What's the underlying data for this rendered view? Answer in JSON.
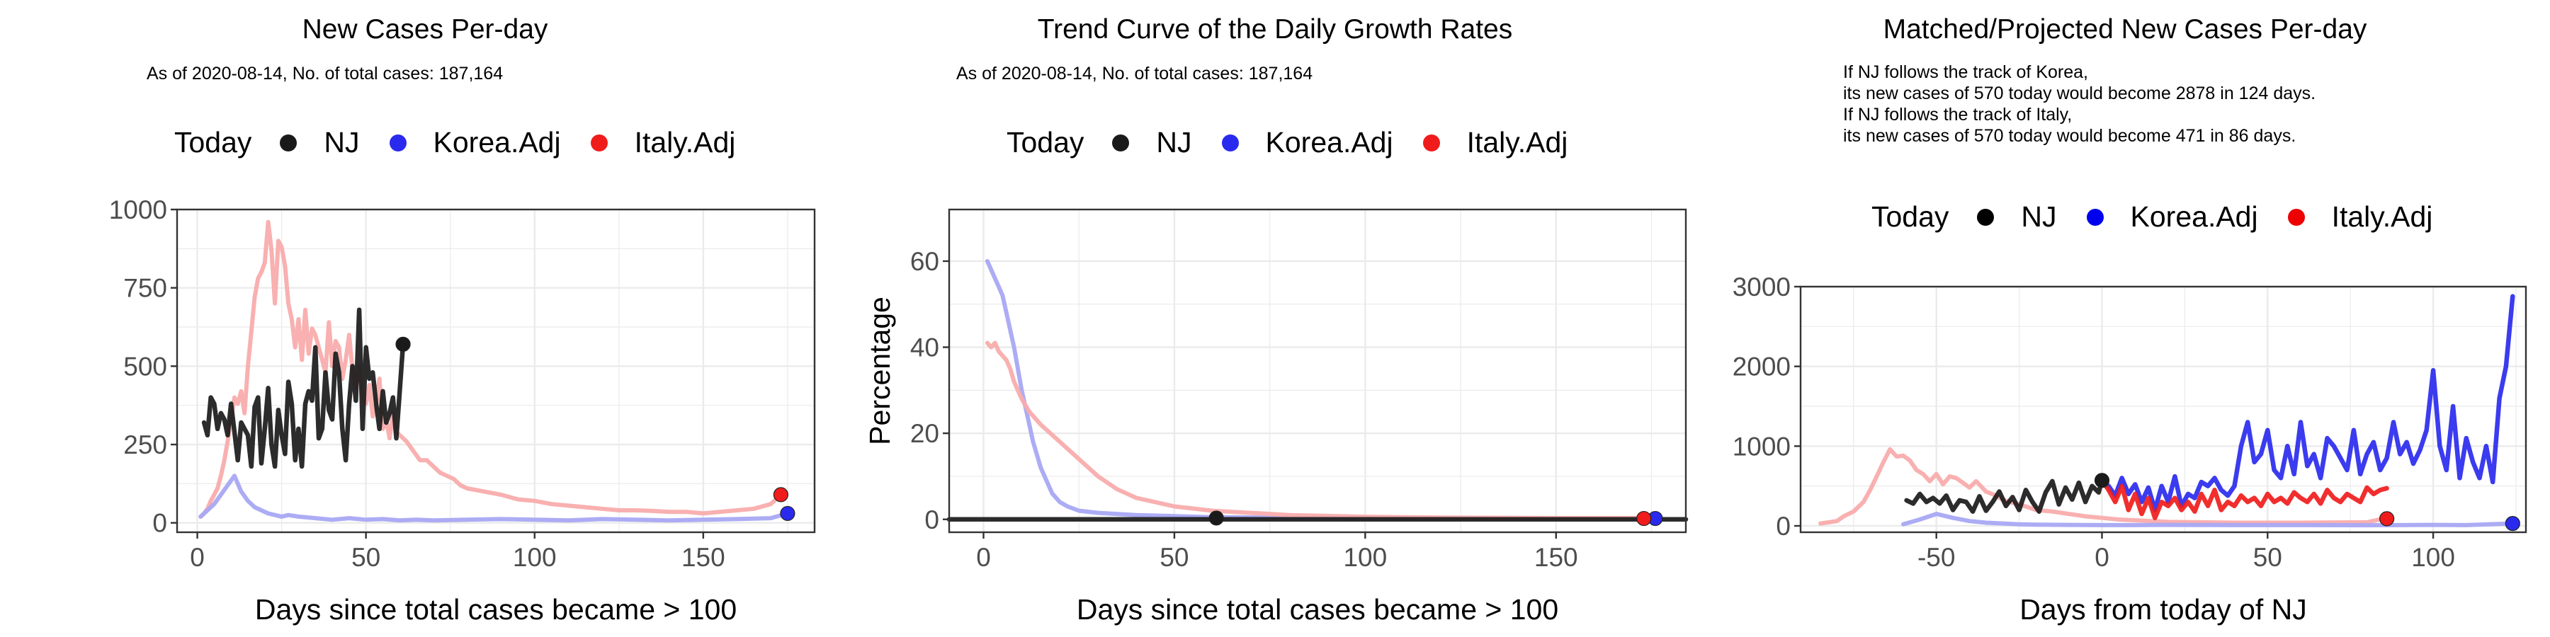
{
  "panels": [
    {
      "title": "New Cases Per-day",
      "subtitle": "As of 2020-08-14, No. of total cases: 187,164",
      "legend": {
        "title": "Today",
        "items": [
          "NJ",
          "Korea.Adj",
          "Italy.Adj"
        ]
      }
    },
    {
      "title": "Trend Curve of the Daily Growth Rates",
      "subtitle": "As of 2020-08-14, No. of total cases: 187,164",
      "legend": {
        "title": "Today",
        "items": [
          "NJ",
          "Korea.Adj",
          "Italy.Adj"
        ]
      }
    },
    {
      "title": "Matched/Projected New Cases Per-day",
      "notes": [
        "If NJ follows the track of Korea,",
        "its new cases of 570 today would become 2878 in 124 days.",
        "If NJ follows the track of Italy,",
        "its new cases of 570 today would become 471 in 86 days."
      ],
      "legend": {
        "title": "Today",
        "items": [
          "NJ",
          "Korea.Adj",
          "Italy.Adj"
        ]
      }
    }
  ],
  "colors": {
    "NJ": "#1a1a1a",
    "Korea": "#2a2aee",
    "Italy": "#f01c1c",
    "Korea_faint": "#a8a8f4",
    "Italy_faint": "#f9acac",
    "grid": "#ebebeb",
    "axis": "#333333"
  },
  "chart_data": [
    {
      "type": "line",
      "xlabel": "Days since total cases became > 100",
      "ylabel": "",
      "xlim": [
        -6,
        183
      ],
      "ylim": [
        -30,
        1000
      ],
      "xticks": [
        0,
        50,
        100,
        150
      ],
      "yticks": [
        0,
        250,
        500,
        750,
        1000
      ],
      "grid": true,
      "legend_position": "top",
      "series": [
        {
          "name": "Italy.Adj",
          "style": "faint",
          "x": [
            1,
            2,
            3,
            4,
            5,
            6,
            7,
            8,
            9,
            10,
            11,
            12,
            13,
            14,
            15,
            16,
            17,
            18,
            19,
            20,
            21,
            22,
            23,
            24,
            25,
            26,
            27,
            28,
            29,
            30,
            31,
            32,
            33,
            34,
            35,
            36,
            37,
            38,
            39,
            40,
            41,
            42,
            43,
            44,
            45,
            46,
            47,
            48,
            49,
            50,
            51,
            52,
            53,
            54,
            55,
            56,
            57,
            58,
            59,
            60,
            62,
            64,
            66,
            68,
            70,
            72,
            74,
            76,
            78,
            80,
            85,
            90,
            95,
            100,
            105,
            110,
            115,
            120,
            125,
            130,
            135,
            140,
            145,
            150,
            155,
            160,
            165,
            170,
            173
          ],
          "y": [
            20,
            30,
            45,
            70,
            90,
            110,
            150,
            200,
            260,
            330,
            400,
            380,
            420,
            350,
            500,
            610,
            720,
            780,
            800,
            830,
            960,
            870,
            700,
            900,
            880,
            820,
            700,
            650,
            560,
            650,
            520,
            680,
            540,
            620,
            600,
            560,
            520,
            480,
            640,
            500,
            580,
            560,
            460,
            520,
            600,
            490,
            430,
            500,
            400,
            380,
            440,
            340,
            380,
            460,
            300,
            330,
            270,
            350,
            290,
            280,
            260,
            230,
            200,
            200,
            180,
            160,
            150,
            140,
            120,
            110,
            100,
            90,
            75,
            70,
            60,
            55,
            50,
            45,
            40,
            40,
            38,
            35,
            35,
            30,
            35,
            40,
            45,
            60,
            90
          ]
        },
        {
          "name": "Korea.Adj",
          "style": "faint",
          "x": [
            1,
            3,
            5,
            7,
            9,
            11,
            13,
            15,
            17,
            19,
            21,
            23,
            25,
            27,
            30,
            35,
            40,
            45,
            50,
            55,
            60,
            65,
            70,
            80,
            90,
            100,
            110,
            120,
            130,
            140,
            150,
            160,
            170,
            175
          ],
          "y": [
            20,
            40,
            60,
            90,
            120,
            150,
            100,
            70,
            50,
            40,
            30,
            25,
            20,
            25,
            20,
            15,
            10,
            15,
            10,
            12,
            8,
            10,
            8,
            10,
            12,
            10,
            8,
            12,
            10,
            8,
            10,
            12,
            15,
            30
          ]
        },
        {
          "name": "NJ",
          "style": "bold",
          "x": [
            2,
            3,
            4,
            5,
            6,
            7,
            8,
            9,
            10,
            11,
            12,
            13,
            14,
            15,
            16,
            17,
            18,
            19,
            20,
            21,
            22,
            23,
            24,
            25,
            26,
            27,
            28,
            29,
            30,
            31,
            32,
            33,
            34,
            35,
            36,
            37,
            38,
            39,
            40,
            41,
            42,
            43,
            44,
            45,
            46,
            47,
            48,
            49,
            50,
            51,
            52,
            53,
            54,
            55,
            56,
            57,
            58,
            59,
            60,
            61
          ],
          "y": [
            320,
            280,
            400,
            380,
            300,
            350,
            330,
            280,
            380,
            290,
            200,
            320,
            300,
            280,
            180,
            370,
            400,
            190,
            300,
            430,
            250,
            180,
            360,
            280,
            220,
            450,
            380,
            200,
            300,
            180,
            380,
            420,
            390,
            560,
            270,
            300,
            480,
            360,
            330,
            540,
            480,
            300,
            200,
            380,
            500,
            390,
            680,
            300,
            560,
            460,
            480,
            380,
            300,
            420,
            320,
            350,
            400,
            270,
            420,
            570
          ]
        }
      ],
      "today_points": [
        {
          "name": "NJ",
          "x": 61,
          "y": 570
        },
        {
          "name": "Korea.Adj",
          "x": 175,
          "y": 30
        },
        {
          "name": "Italy.Adj",
          "x": 173,
          "y": 90
        }
      ]
    },
    {
      "type": "line",
      "xlabel": "Days since total cases became > 100",
      "ylabel": "Percentage",
      "xlim": [
        -9,
        184
      ],
      "ylim": [
        -3,
        72
      ],
      "xticks": [
        0,
        50,
        100,
        150
      ],
      "yticks": [
        0,
        20,
        40,
        60
      ],
      "grid": true,
      "legend_position": "top",
      "series": [
        {
          "name": "Korea.Adj",
          "style": "faint",
          "x": [
            1,
            2,
            3,
            4,
            5,
            6,
            7,
            8,
            9,
            10,
            11,
            12,
            13,
            14,
            15,
            16,
            17,
            18,
            20,
            22,
            25,
            30,
            40,
            60,
            100,
            150,
            175
          ],
          "y": [
            60,
            58,
            56,
            54,
            52,
            48,
            44,
            40,
            35,
            30,
            26,
            22,
            18,
            15,
            12,
            10,
            8,
            6,
            4,
            3,
            2,
            1.5,
            1,
            0.5,
            0.3,
            0.2,
            0.2
          ]
        },
        {
          "name": "Italy.Adj",
          "style": "faint",
          "x": [
            1,
            2,
            3,
            4,
            5,
            6,
            7,
            8,
            9,
            10,
            12,
            15,
            20,
            25,
            30,
            35,
            40,
            45,
            50,
            60,
            70,
            80,
            100,
            120,
            150,
            173
          ],
          "y": [
            41,
            40,
            41,
            39,
            38,
            37,
            35,
            32,
            30,
            28,
            25,
            22,
            18,
            14,
            10,
            7,
            5,
            4,
            3,
            2,
            1.5,
            1,
            0.6,
            0.4,
            0.3,
            0.3
          ]
        },
        {
          "name": "NJ",
          "style": "bold",
          "x": [
            -9,
            0,
            10,
            20,
            30,
            40,
            50,
            60,
            61,
            100,
            150,
            184
          ],
          "y": [
            0,
            0,
            0,
            0,
            0,
            0,
            0,
            0,
            0,
            0,
            0,
            0
          ]
        }
      ],
      "today_points": [
        {
          "name": "NJ",
          "x": 61,
          "y": 0.3
        },
        {
          "name": "Korea.Adj",
          "x": 176,
          "y": 0.2
        },
        {
          "name": "Italy.Adj",
          "x": 173,
          "y": 0.2
        }
      ]
    },
    {
      "type": "line",
      "xlabel": "Days from today of NJ",
      "ylabel": "",
      "xlim": [
        -91,
        128
      ],
      "ylim": [
        -80,
        3000
      ],
      "xticks": [
        -50,
        0,
        50,
        100
      ],
      "yticks": [
        0,
        1000,
        2000,
        3000
      ],
      "grid": true,
      "legend_position": "top",
      "series": [
        {
          "name": "Italy.Adj",
          "style": "faint",
          "x": [
            -85,
            -80,
            -78,
            -75,
            -72,
            -70,
            -68,
            -66,
            -64,
            -62,
            -60,
            -58,
            -56,
            -54,
            -52,
            -50,
            -48,
            -46,
            -44,
            -42,
            -40,
            -38,
            -35,
            -32,
            -30,
            -28,
            -25,
            -22,
            -20,
            -15,
            -10,
            -5,
            0,
            5,
            10,
            15,
            20,
            30,
            40,
            60,
            80,
            85
          ],
          "y": [
            30,
            60,
            120,
            180,
            300,
            450,
            620,
            800,
            960,
            870,
            880,
            820,
            700,
            650,
            560,
            650,
            520,
            620,
            600,
            540,
            480,
            560,
            430,
            380,
            330,
            300,
            270,
            230,
            200,
            180,
            150,
            120,
            100,
            80,
            70,
            60,
            50,
            45,
            40,
            40,
            45,
            90
          ]
        },
        {
          "name": "Korea.Adj",
          "style": "faint",
          "x": [
            -60,
            -55,
            -50,
            -45,
            -40,
            -35,
            -30,
            -25,
            -20,
            -10,
            0,
            10,
            20,
            40,
            60,
            80,
            100,
            110,
            124
          ],
          "y": [
            20,
            80,
            150,
            100,
            60,
            40,
            30,
            20,
            15,
            12,
            10,
            10,
            12,
            10,
            10,
            8,
            12,
            10,
            30
          ]
        },
        {
          "name": "NJ",
          "style": "bold",
          "x": [
            -59,
            -57,
            -55,
            -53,
            -51,
            -49,
            -47,
            -45,
            -43,
            -41,
            -39,
            -37,
            -35,
            -33,
            -31,
            -29,
            -27,
            -25,
            -23,
            -21,
            -19,
            -17,
            -15,
            -13,
            -11,
            -9,
            -7,
            -5,
            -3,
            -1,
            0
          ],
          "y": [
            320,
            280,
            400,
            300,
            350,
            280,
            380,
            200,
            320,
            300,
            180,
            370,
            190,
            300,
            430,
            250,
            360,
            200,
            450,
            300,
            180,
            420,
            560,
            270,
            480,
            330,
            540,
            300,
            500,
            420,
            570
          ]
        },
        {
          "name": "Korea.Adj",
          "style": "bold",
          "x": [
            0,
            2,
            4,
            6,
            8,
            10,
            12,
            14,
            16,
            18,
            20,
            22,
            24,
            26,
            28,
            30,
            32,
            34,
            36,
            38,
            40,
            42,
            44,
            46,
            48,
            50,
            52,
            54,
            56,
            58,
            60,
            62,
            64,
            66,
            68,
            70,
            72,
            74,
            76,
            78,
            80,
            82,
            84,
            86,
            88,
            90,
            92,
            94,
            96,
            98,
            100,
            102,
            104,
            106,
            108,
            110,
            112,
            114,
            116,
            118,
            120,
            122,
            124
          ],
          "y": [
            570,
            500,
            380,
            600,
            400,
            520,
            300,
            480,
            200,
            500,
            300,
            620,
            250,
            400,
            350,
            550,
            500,
            600,
            450,
            380,
            500,
            1000,
            1300,
            800,
            900,
            1200,
            700,
            600,
            1000,
            650,
            1300,
            750,
            900,
            600,
            1100,
            1000,
            850,
            700,
            1200,
            650,
            900,
            1050,
            700,
            850,
            1300,
            900,
            1050,
            780,
            950,
            1200,
            1950,
            1000,
            700,
            1500,
            600,
            1100,
            800,
            600,
            1000,
            550,
            1600,
            2000,
            2878
          ]
        },
        {
          "name": "Italy.Adj",
          "style": "bold",
          "x": [
            0,
            2,
            4,
            6,
            8,
            10,
            12,
            14,
            16,
            18,
            20,
            22,
            24,
            26,
            28,
            30,
            32,
            34,
            36,
            38,
            40,
            42,
            44,
            46,
            48,
            50,
            52,
            54,
            56,
            58,
            60,
            62,
            64,
            66,
            68,
            70,
            72,
            74,
            76,
            78,
            80,
            82,
            84,
            86
          ],
          "y": [
            570,
            450,
            300,
            500,
            200,
            400,
            150,
            350,
            100,
            300,
            250,
            350,
            200,
            300,
            180,
            400,
            250,
            450,
            200,
            300,
            250,
            380,
            300,
            350,
            250,
            400,
            300,
            350,
            280,
            420,
            350,
            300,
            400,
            280,
            450,
            350,
            300,
            400,
            350,
            300,
            480,
            400,
            450,
            471
          ]
        }
      ],
      "today_points": [
        {
          "name": "NJ",
          "x": 0,
          "y": 570
        },
        {
          "name": "Korea.Adj",
          "x": 124,
          "y": 30
        },
        {
          "name": "Italy.Adj",
          "x": 86,
          "y": 90
        }
      ]
    }
  ]
}
